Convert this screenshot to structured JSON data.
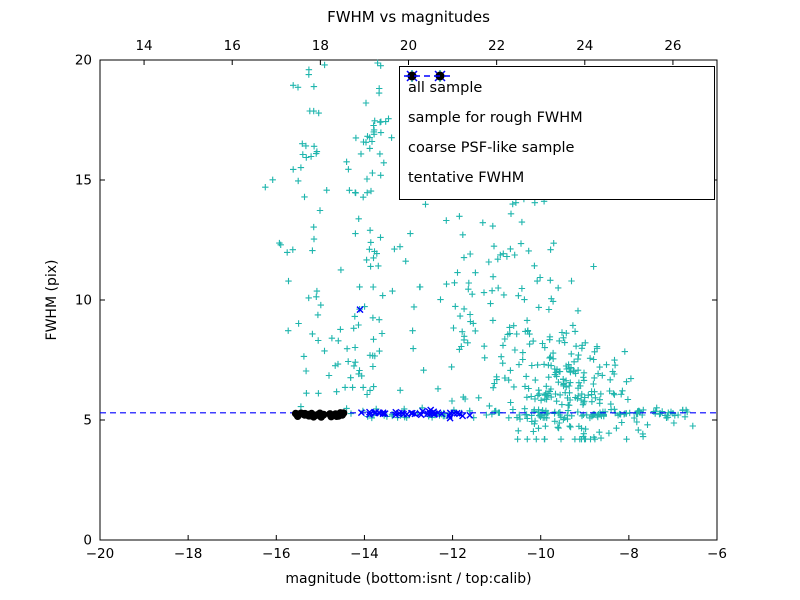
{
  "window": {
    "background": "#ffffff"
  },
  "legend": {
    "items": [
      {
        "label": "all sample",
        "marker": "plus",
        "color": "#1fb5ad"
      },
      {
        "label": "sample for rough FWHM",
        "marker": "x",
        "color": "#0000ff"
      },
      {
        "label": "coarse PSF-like sample",
        "marker": "dot",
        "color": "#000000"
      },
      {
        "label": "tentative FWHM",
        "marker": "dashed-line",
        "color": "#0000ff"
      }
    ]
  },
  "chart_data": {
    "type": "scatter",
    "title": "FWHM vs magnitudes",
    "xlabel": "magnitude (bottom:isnt / top:calib)",
    "ylabel": "FWHM (pix)",
    "xlim": [
      -20,
      -6
    ],
    "ylim": [
      0,
      20
    ],
    "x_ticks_bottom": [
      -20,
      -18,
      -16,
      -14,
      -12,
      -10,
      -8,
      -6
    ],
    "x_ticks_top": [
      14,
      16,
      18,
      20,
      22,
      24,
      26
    ],
    "top_axis_offset": 33,
    "y_ticks": [
      0,
      5,
      10,
      15,
      20
    ],
    "grid": false,
    "legend_position": "upper right",
    "tentative_fwhm": {
      "y": 5.3,
      "color": "#0000ff",
      "style": "dashed",
      "label": "tentative FWHM"
    },
    "series": [
      {
        "name": "all sample",
        "marker": "plus",
        "color": "#1fb5ad",
        "clusters": [
          {
            "n": 120,
            "x": {
              "dist": "uniform",
              "min": -14.5,
              "max": -6.4
            },
            "y": {
              "dist": "normal",
              "mean": 5.25,
              "sd": 0.1
            }
          },
          {
            "n": 50,
            "x": {
              "dist": "normal",
              "mean": -15.2,
              "sd": 0.28
            },
            "y": {
              "dist": "uniform",
              "min": 5.5,
              "max": 19.8
            }
          },
          {
            "n": 75,
            "x": {
              "dist": "normal",
              "mean": -13.9,
              "sd": 0.22
            },
            "y": {
              "dist": "uniform",
              "min": 5.6,
              "max": 19.9
            }
          },
          {
            "n": 30,
            "x": {
              "dist": "uniform",
              "min": -13.4,
              "max": -11.5
            },
            "y": {
              "dist": "uniform",
              "min": 5.5,
              "max": 14.5
            }
          },
          {
            "n": 200,
            "x": {
              "dist": "normal",
              "mean": -9.3,
              "sd": 0.7,
              "min": -11,
              "max": -7.2
            },
            "y": {
              "dist": "normal",
              "mean": 6.2,
              "sd": 1.3,
              "min": 4.2,
              "max": 11
            }
          },
          {
            "n": 70,
            "x": {
              "dist": "normal",
              "mean": -10.3,
              "sd": 0.6,
              "min": -11.6,
              "max": -8.8
            },
            "y": {
              "dist": "uniform",
              "min": 7,
              "max": 15.3
            }
          },
          {
            "n": 25,
            "x": {
              "dist": "uniform",
              "min": -11.9,
              "max": -10.8
            },
            "y": {
              "dist": "uniform",
              "min": 5.5,
              "max": 13
            }
          },
          {
            "n": 14,
            "x": {
              "dist": "uniform",
              "min": -8.0,
              "max": -6.6
            },
            "y": {
              "dist": "normal",
              "mean": 5.0,
              "sd": 0.35
            }
          },
          {
            "n": 12,
            "x": {
              "dist": "uniform",
              "min": -14.7,
              "max": -14.2
            },
            "y": {
              "dist": "uniform",
              "min": 6.0,
              "max": 8.5
            }
          }
        ],
        "points": [
          [
            -16.25,
            14.7
          ],
          [
            -15.9,
            12.3
          ],
          [
            -6.55,
            4.75
          ]
        ]
      },
      {
        "name": "sample for rough FWHM",
        "marker": "x",
        "color": "#0000ff",
        "clusters": [
          {
            "n": 40,
            "x": {
              "dist": "uniform",
              "min": -14.45,
              "max": -11.6
            },
            "y": {
              "dist": "normal",
              "mean": 5.27,
              "sd": 0.06
            }
          }
        ],
        "points": [
          [
            -14.1,
            9.6
          ]
        ]
      },
      {
        "name": "coarse PSF-like sample",
        "marker": "dot",
        "color": "#000000",
        "clusters": [
          {
            "n": 32,
            "x": {
              "dist": "uniform",
              "min": -15.6,
              "max": -14.45
            },
            "y": {
              "dist": "normal",
              "mean": 5.24,
              "sd": 0.05
            }
          }
        ],
        "points": []
      }
    ]
  }
}
